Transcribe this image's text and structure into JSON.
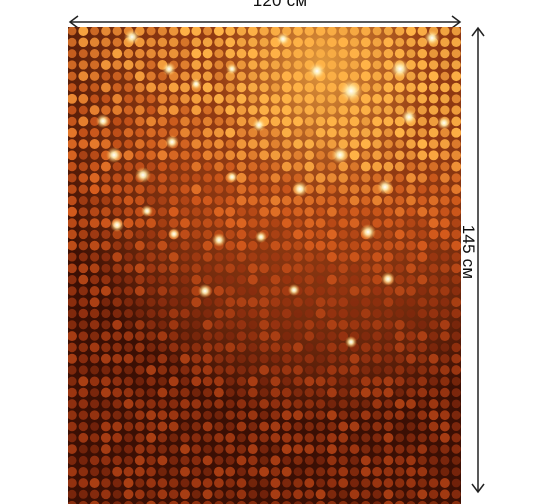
{
  "product": {
    "width_label": "120 см",
    "height_label": "145 см",
    "pattern_description": "",
    "colors": {
      "background": "#3b0f04",
      "deep": "#5a1608",
      "mid": "#9a3410",
      "warm": "#d85d1d",
      "glow": "#ffb347",
      "highlight": "#fff1b6"
    }
  }
}
